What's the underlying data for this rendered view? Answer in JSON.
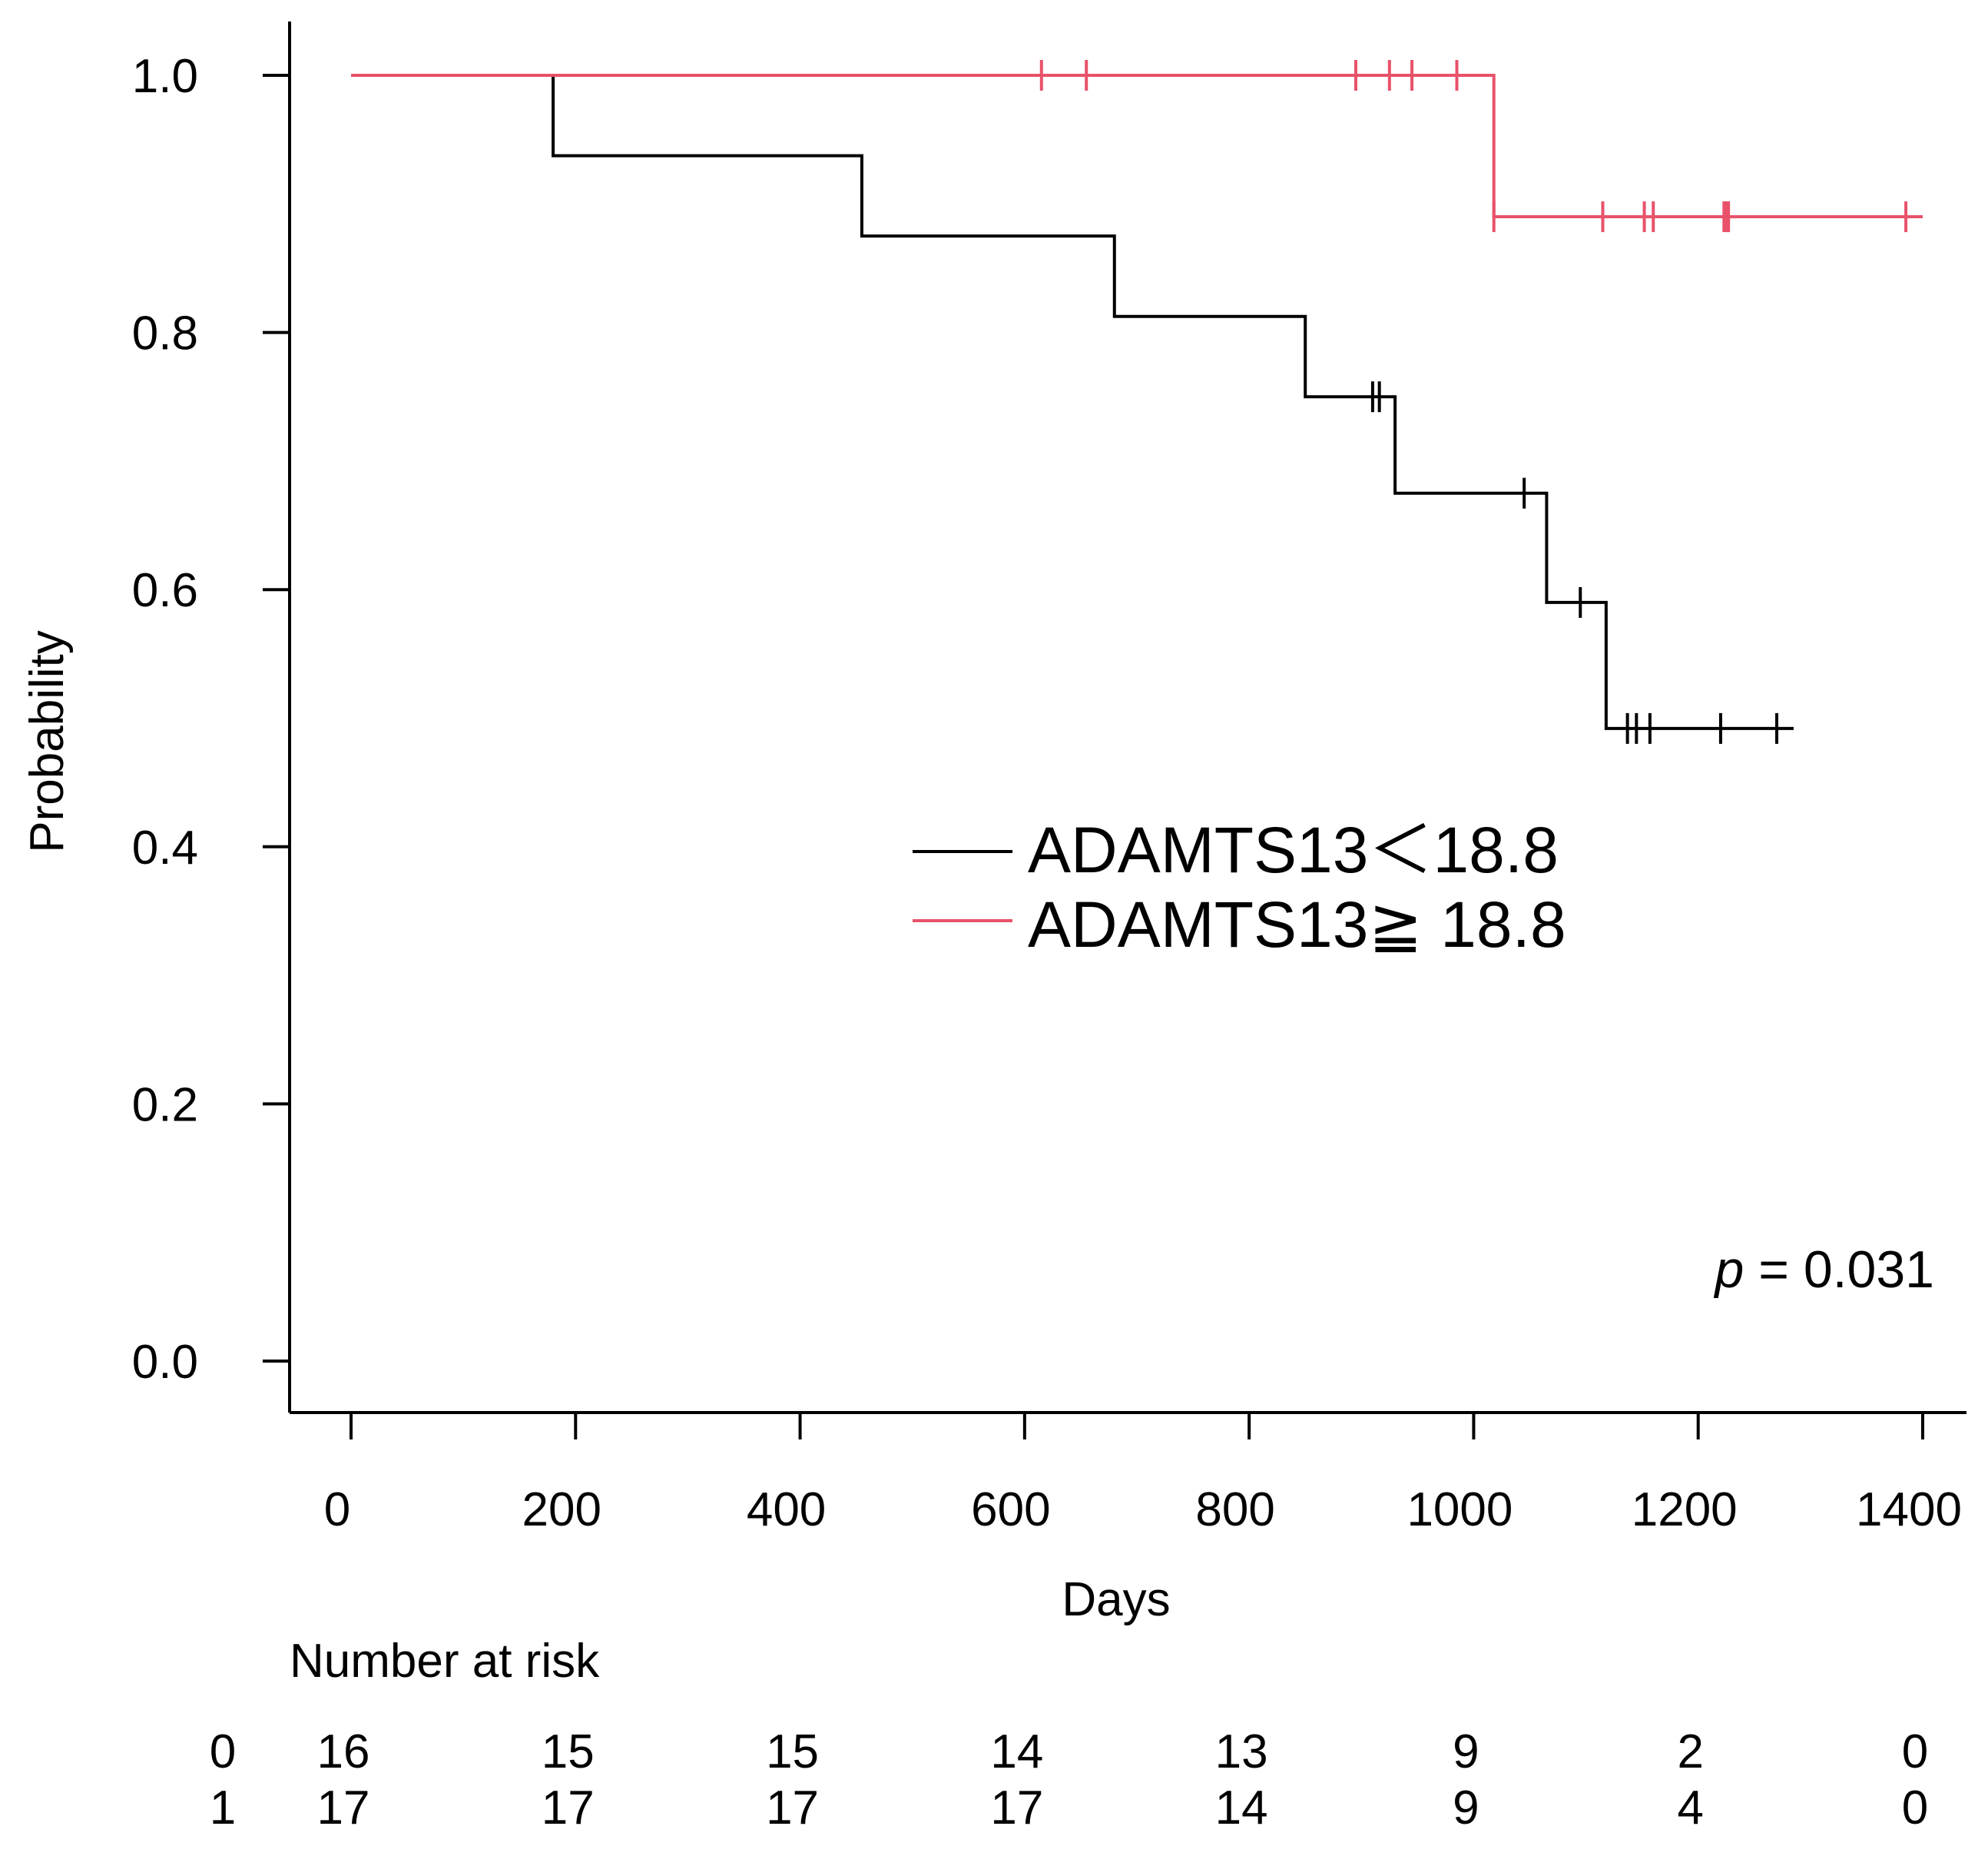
{
  "chart_data": {
    "type": "line",
    "subtype": "kaplan-meier",
    "title": "",
    "xlabel": "Days",
    "ylabel": "Probability",
    "xlim": [
      0,
      1400
    ],
    "ylim": [
      0,
      1
    ],
    "xticks": [
      0,
      200,
      400,
      600,
      800,
      1000,
      1200,
      1400
    ],
    "yticks": [
      0.0,
      0.2,
      0.4,
      0.6,
      0.8,
      1.0
    ],
    "ytick_labels": [
      "0.0",
      "0.2",
      "0.4",
      "0.6",
      "0.8",
      "1.0"
    ],
    "grid": false,
    "legend_position": "center-right",
    "series": [
      {
        "name": "ADAMTS13 < 18.8",
        "legend_label": "ADAMTS13＜18.8",
        "group_code": "0",
        "color": "#000000",
        "steps": [
          {
            "x": 0,
            "y": 1.0
          },
          {
            "x": 180,
            "y": 0.9375
          },
          {
            "x": 455,
            "y": 0.875
          },
          {
            "x": 680,
            "y": 0.8125
          },
          {
            "x": 850,
            "y": 0.75
          },
          {
            "x": 930,
            "y": 0.675
          },
          {
            "x": 1065,
            "y": 0.59
          },
          {
            "x": 1118,
            "y": 0.492
          }
        ],
        "end_x": 1285,
        "censored": [
          {
            "x": 910,
            "y": 0.75
          },
          {
            "x": 916,
            "y": 0.75
          },
          {
            "x": 1045,
            "y": 0.675
          },
          {
            "x": 1095,
            "y": 0.59
          },
          {
            "x": 1137,
            "y": 0.492
          },
          {
            "x": 1145,
            "y": 0.492
          },
          {
            "x": 1157,
            "y": 0.492
          },
          {
            "x": 1220,
            "y": 0.492
          },
          {
            "x": 1270,
            "y": 0.492
          }
        ]
      },
      {
        "name": "ADAMTS13 >= 18.8",
        "legend_label": "ADAMTS13≧ 18.8",
        "group_code": "1",
        "color": "#e8526a",
        "steps": [
          {
            "x": 0,
            "y": 1.0
          },
          {
            "x": 1018,
            "y": 0.89
          }
        ],
        "end_x": 1400,
        "censored": [
          {
            "x": 615,
            "y": 1.0
          },
          {
            "x": 655,
            "y": 1.0
          },
          {
            "x": 895,
            "y": 1.0
          },
          {
            "x": 925,
            "y": 1.0
          },
          {
            "x": 945,
            "y": 1.0
          },
          {
            "x": 985,
            "y": 1.0
          },
          {
            "x": 1018,
            "y": 0.89
          },
          {
            "x": 1115,
            "y": 0.89
          },
          {
            "x": 1152,
            "y": 0.89
          },
          {
            "x": 1160,
            "y": 0.89
          },
          {
            "x": 1223,
            "y": 0.89
          },
          {
            "x": 1225,
            "y": 0.89
          },
          {
            "x": 1227,
            "y": 0.89
          },
          {
            "x": 1385,
            "y": 0.89
          }
        ]
      }
    ],
    "annotation": {
      "p_symbol": "p",
      "p_text": " = 0.031"
    },
    "risk_table": {
      "title": "Number at risk",
      "times": [
        0,
        200,
        400,
        600,
        800,
        1000,
        1200,
        1400
      ],
      "rows": [
        {
          "label": "0",
          "counts": [
            "16",
            "15",
            "15",
            "14",
            "13",
            "9",
            "2",
            "0"
          ]
        },
        {
          "label": "1",
          "counts": [
            "17",
            "17",
            "17",
            "17",
            "14",
            "9",
            "4",
            "0"
          ]
        }
      ]
    }
  }
}
